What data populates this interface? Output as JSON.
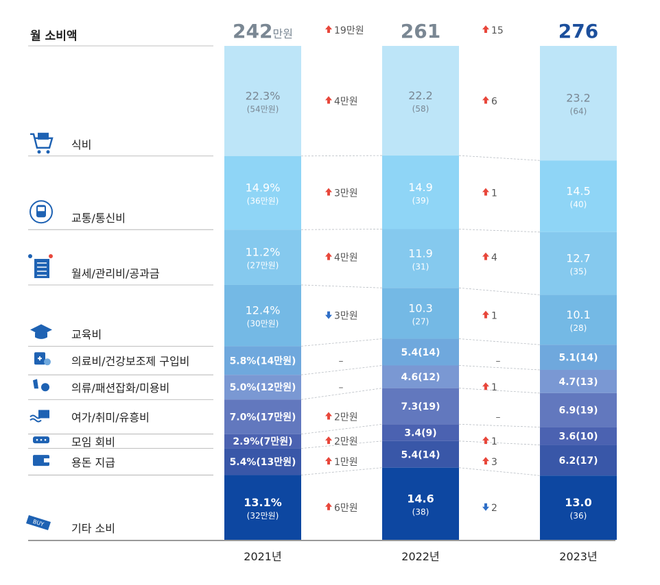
{
  "header": {
    "title": "월 소비액"
  },
  "chart_data": {
    "type": "bar",
    "subtype": "stacked-100",
    "title": "월 소비액",
    "columns": [
      "2021년",
      "2022년",
      "2023년"
    ],
    "totals": [
      {
        "value": "242",
        "unit": "만원"
      },
      {
        "value": "261",
        "unit": ""
      },
      {
        "value": "276",
        "unit": ""
      }
    ],
    "total_changes": [
      {
        "dir": "up",
        "text": "19만원"
      },
      {
        "dir": "up",
        "text": "15"
      }
    ],
    "categories": [
      {
        "name": "식비",
        "icon": "shopping-cart-icon",
        "values": [
          22.3,
          22.2,
          23.2
        ],
        "labels": [
          [
            "22.3%",
            "(54만원)"
          ],
          [
            "22.2",
            "(58)"
          ],
          [
            "23.2",
            "(64)"
          ]
        ],
        "changes": [
          {
            "dir": "up",
            "text": "4만원"
          },
          {
            "dir": "up",
            "text": "6"
          }
        ]
      },
      {
        "name": "교통/통신비",
        "icon": "train-icon",
        "values": [
          14.9,
          14.9,
          14.5
        ],
        "labels": [
          [
            "14.9%",
            "(36만원)"
          ],
          [
            "14.9",
            "(39)"
          ],
          [
            "14.5",
            "(40)"
          ]
        ],
        "changes": [
          {
            "dir": "up",
            "text": "3만원"
          },
          {
            "dir": "up",
            "text": "1"
          }
        ]
      },
      {
        "name": "월세/관리비/공과금",
        "icon": "bill-icon",
        "values": [
          11.2,
          11.9,
          12.7
        ],
        "labels": [
          [
            "11.2%",
            "(27만원)"
          ],
          [
            "11.9",
            "(31)"
          ],
          [
            "12.7",
            "(35)"
          ]
        ],
        "changes": [
          {
            "dir": "up",
            "text": "4만원"
          },
          {
            "dir": "up",
            "text": "4"
          }
        ]
      },
      {
        "name": "교육비",
        "icon": "graduation-cap-icon",
        "values": [
          12.4,
          10.3,
          10.1
        ],
        "labels": [
          [
            "12.4%",
            "(30만원)"
          ],
          [
            "10.3",
            "(27)"
          ],
          [
            "10.1",
            "(28)"
          ]
        ],
        "changes": [
          {
            "dir": "down",
            "text": "3만원"
          },
          {
            "dir": "up",
            "text": "1"
          }
        ]
      },
      {
        "name": "의료비/건강보조제 구입비",
        "icon": "medicine-icon",
        "values": [
          5.8,
          5.4,
          5.1
        ],
        "labels": [
          [
            "5.8%(14만원)"
          ],
          [
            "5.4(14)"
          ],
          [
            "5.1(14)"
          ]
        ],
        "changes": [
          {
            "dir": "none",
            "text": "–"
          },
          {
            "dir": "none",
            "text": "–"
          }
        ]
      },
      {
        "name": "의류/패션잡화/미용비",
        "icon": "fashion-icon",
        "values": [
          5.0,
          4.6,
          4.7
        ],
        "labels": [
          [
            "5.0%(12만원)"
          ],
          [
            "4.6(12)"
          ],
          [
            "4.7(13)"
          ]
        ],
        "changes": [
          {
            "dir": "none",
            "text": "–"
          },
          {
            "dir": "up",
            "text": "1"
          }
        ]
      },
      {
        "name": "여가/취미/유흥비",
        "icon": "leisure-icon",
        "values": [
          7.0,
          7.3,
          6.9
        ],
        "labels": [
          [
            "7.0%(17만원)"
          ],
          [
            "7.3(19)"
          ],
          [
            "6.9(19)"
          ]
        ],
        "changes": [
          {
            "dir": "up",
            "text": "2만원"
          },
          {
            "dir": "none",
            "text": "–"
          }
        ]
      },
      {
        "name": "모임 회비",
        "icon": "chat-icon",
        "values": [
          2.9,
          3.4,
          3.6
        ],
        "labels": [
          [
            "2.9%(7만원)"
          ],
          [
            "3.4(9)"
          ],
          [
            "3.6(10)"
          ]
        ],
        "changes": [
          {
            "dir": "up",
            "text": "2만원"
          },
          {
            "dir": "up",
            "text": "1"
          }
        ]
      },
      {
        "name": "용돈 지급",
        "icon": "wallet-icon",
        "values": [
          5.4,
          5.4,
          6.2
        ],
        "labels": [
          [
            "5.4%(13만원)"
          ],
          [
            "5.4(14)"
          ],
          [
            "6.2(17)"
          ]
        ],
        "changes": [
          {
            "dir": "up",
            "text": "1만원"
          },
          {
            "dir": "up",
            "text": "3"
          }
        ]
      },
      {
        "name": "기타 소비",
        "icon": "buy-tag-icon",
        "icon_text": "BUY",
        "values": [
          13.1,
          14.6,
          13.0
        ],
        "labels": [
          [
            "13.1%",
            "(32만원)"
          ],
          [
            "14.6",
            "(38)"
          ],
          [
            "13.0",
            "(36)"
          ]
        ],
        "changes": [
          {
            "dir": "up",
            "text": "6만원"
          },
          {
            "dir": "down",
            "text": "2"
          }
        ]
      }
    ],
    "colors": {
      "segments": [
        "#bde5f8",
        "#8fd5f6",
        "#85c9ee",
        "#74b9e5",
        "#6fa8dd",
        "#7a98d3",
        "#6278be",
        "#4b62b1",
        "#3957a8",
        "#0d47a1"
      ],
      "text_dark": "#7a8793",
      "text_light": "#ffffff",
      "up_arrow": "#e8473b",
      "down_arrow": "#2f6fc7",
      "icon": "#1e62b3",
      "total_final": "#1c4f9c",
      "total_other": "#7a8793"
    }
  }
}
